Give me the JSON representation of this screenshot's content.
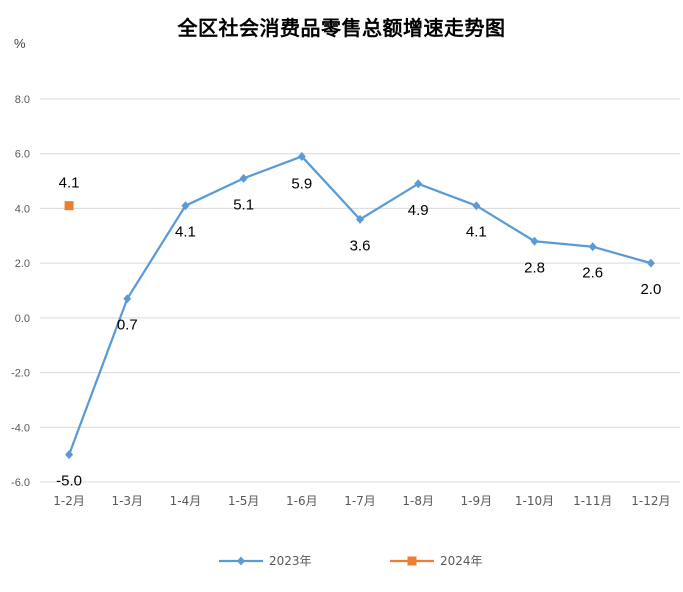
{
  "chart_data": {
    "type": "line",
    "title": "全区社会消费品零售总额增速走势图",
    "ylabel": "%",
    "xlabel": "",
    "ylim": [
      -6.0,
      8.0
    ],
    "y_ticks": [
      "8.0",
      "6.0",
      "4.0",
      "2.0",
      "0.0",
      "-2.0",
      "-4.0",
      "-6.0"
    ],
    "y_tick_values": [
      8,
      6,
      4,
      2,
      0,
      -2,
      -4,
      -6
    ],
    "categories": [
      "1-2月",
      "1-3月",
      "1-4月",
      "1-5月",
      "1-6月",
      "1-7月",
      "1-8月",
      "1-9月",
      "1-10月",
      "1-11月",
      "1-12月"
    ],
    "grid": true,
    "legend_position": "bottom",
    "series": [
      {
        "name": "2023年",
        "color": "#5B9BD5",
        "marker": "diamond",
        "values": [
          -5.0,
          0.7,
          4.1,
          5.1,
          5.9,
          3.6,
          4.9,
          4.1,
          2.8,
          2.6,
          2.0
        ],
        "labels": [
          "-5.0",
          "0.7",
          "4.1",
          "5.1",
          "5.9",
          "3.6",
          "4.9",
          "4.1",
          "2.8",
          "2.6",
          "2.0"
        ]
      },
      {
        "name": "2024年",
        "color": "#ED7D31",
        "marker": "square",
        "values": [
          4.1,
          null,
          null,
          null,
          null,
          null,
          null,
          null,
          null,
          null,
          null
        ],
        "labels": [
          "4.1",
          null,
          null,
          null,
          null,
          null,
          null,
          null,
          null,
          null,
          null
        ]
      }
    ]
  }
}
